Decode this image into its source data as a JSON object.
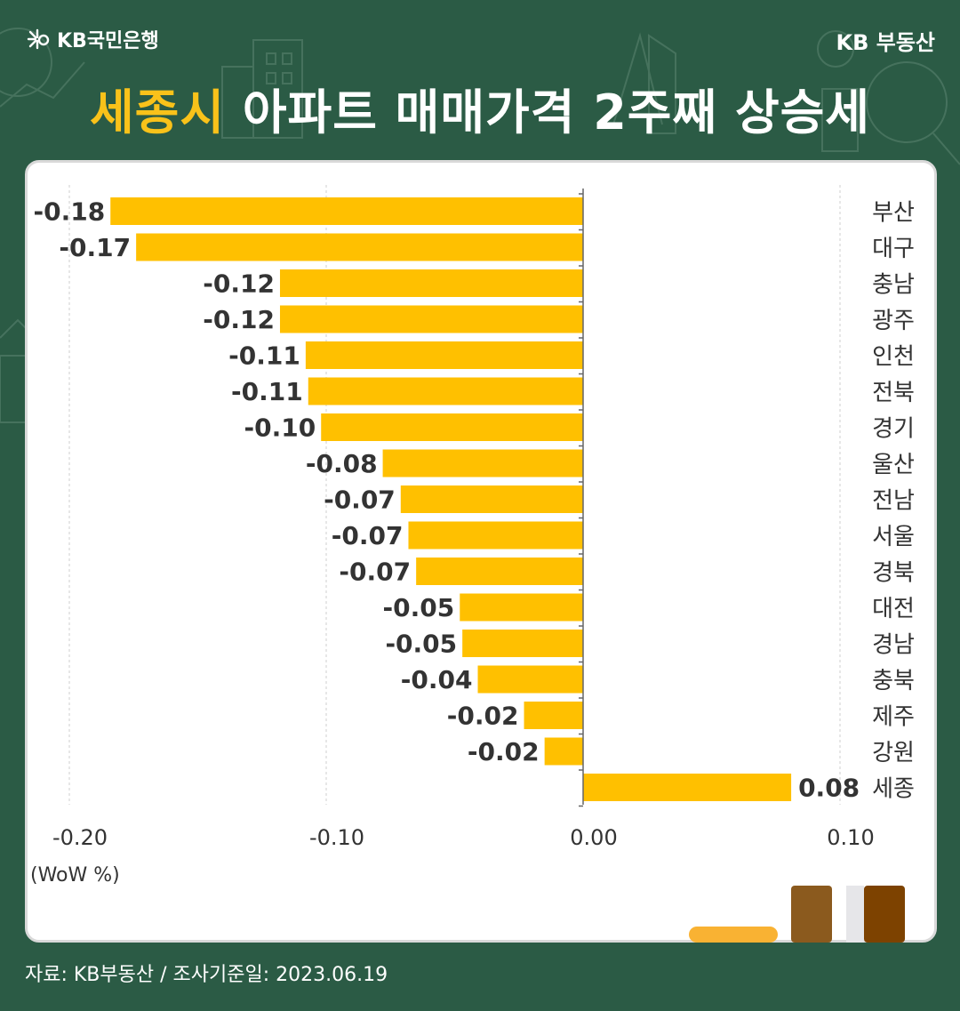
{
  "header": {
    "brand_left": "KB국민은행",
    "brand_right": "KB 부동산",
    "title_highlight": "세종시",
    "title_rest": " 아파트 매매가격 2주째 상승세"
  },
  "chart_data": {
    "type": "bar",
    "orientation": "horizontal",
    "categories": [
      "부산",
      "대구",
      "충남",
      "광주",
      "인천",
      "전북",
      "경기",
      "울산",
      "전남",
      "서울",
      "경북",
      "대전",
      "경남",
      "충북",
      "제주",
      "강원",
      "세종"
    ],
    "values": [
      -0.18,
      -0.17,
      -0.12,
      -0.12,
      -0.11,
      -0.11,
      -0.1,
      -0.08,
      -0.07,
      -0.07,
      -0.07,
      -0.05,
      -0.05,
      -0.04,
      -0.02,
      -0.02,
      0.08
    ],
    "value_labels": [
      "-0.18",
      "-0.17",
      "-0.12",
      "-0.12",
      "-0.11",
      "-0.11",
      "-0.10",
      "-0.08",
      "-0.07",
      "-0.07",
      "-0.07",
      "-0.05",
      "-0.05",
      "-0.04",
      "-0.02",
      "-0.02",
      "0.08"
    ],
    "true_values_est": [
      -0.184,
      -0.174,
      -0.118,
      -0.118,
      -0.108,
      -0.107,
      -0.102,
      -0.078,
      -0.071,
      -0.068,
      -0.065,
      -0.048,
      -0.047,
      -0.041,
      -0.023,
      -0.015,
      0.081
    ],
    "xlim": [
      -0.2,
      0.1
    ],
    "xticks": [
      "-0.20",
      "-0.10",
      "0.00",
      "0.10"
    ],
    "xtick_values": [
      -0.2,
      -0.1,
      0.0,
      0.1
    ],
    "unit_label": "(WoW %)",
    "bar_color": "#ffc000",
    "grid": true
  },
  "footer": {
    "source": "자료: KB부동산 / 조사기준일: 2023.06.19"
  },
  "colors": {
    "background": "#2b5b45",
    "accent": "#f9c21a"
  }
}
